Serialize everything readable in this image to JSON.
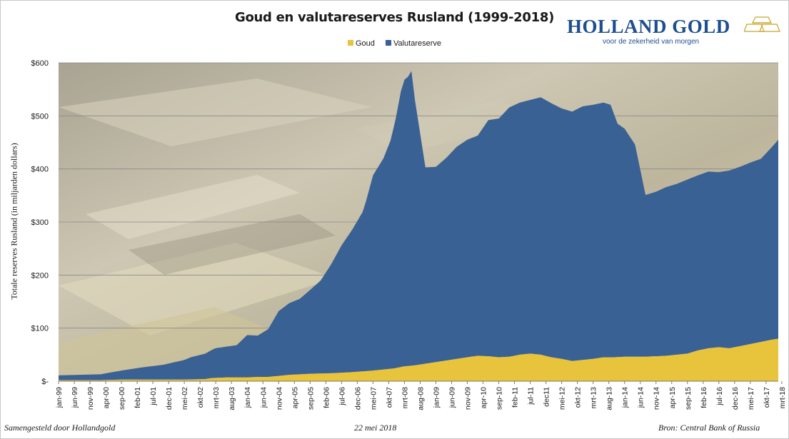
{
  "header": {
    "title": "Goud en valutareserves Rusland (1999-2018)"
  },
  "logo": {
    "name": "HOLLAND GOLD",
    "slogan": "voor de zekerheid van morgen"
  },
  "legend": {
    "items": [
      {
        "label": "Goud",
        "color": "#e8c33c"
      },
      {
        "label": "Valutareserve",
        "color": "#3a6193"
      }
    ]
  },
  "footer": {
    "left": "Samengesteld door Hollandgold",
    "center": "22 mei 2018",
    "right": "Bron: Central Bank of Russia"
  },
  "chart_data": {
    "type": "area",
    "stacked": true,
    "title": "Goud en valutareserves Rusland (1999-2018)",
    "ylabel": "Totale reserves Rusland (in miljarden dollars)",
    "xlabel": "",
    "ylim": [
      0,
      600
    ],
    "yticks": [
      0,
      100,
      200,
      300,
      400,
      500,
      600
    ],
    "ytick_labels": [
      "$-",
      "$100",
      "$200",
      "$300",
      "$400",
      "$500",
      "$600"
    ],
    "grid": true,
    "legend_position": "top-center",
    "background": "photograph of gold bars",
    "x_tick_labels": [
      "jan-99",
      "jun-99",
      "nov-99",
      "apr-00",
      "sep-00",
      "feb-01",
      "jul-01",
      "dec-01",
      "mei-02",
      "okt-02",
      "mrt-03",
      "aug-03",
      "jan-04",
      "jun-04",
      "nov-04",
      "apr-05",
      "sep-05",
      "feb-06",
      "jul-06",
      "dec-06",
      "mei-07",
      "okt-07",
      "mrt-08",
      "aug-08",
      "jan-09",
      "jun-09",
      "nov-09",
      "apr-10",
      "sep-10",
      "feb-11",
      "jul-11",
      "dec11",
      "mei-12",
      "okt-12",
      "mrt-13",
      "aug-13",
      "jan-14",
      "jun-14",
      "nov-14",
      "apr-15",
      "sep-15",
      "feb-16",
      "jul-16",
      "dec-16",
      "mei-17",
      "okt-17",
      "mrt-18"
    ],
    "series": [
      {
        "name": "Goud",
        "color": "#e8c33c",
        "x": [
          0,
          12,
          24,
          36,
          48,
          60,
          72,
          84,
          86,
          88,
          96,
          102,
          108,
          114,
          120,
          132,
          144,
          156,
          168,
          180,
          186,
          192,
          198,
          204,
          210,
          216,
          222,
          228,
          234,
          240,
          246,
          252,
          258,
          264,
          270,
          276,
          282,
          288,
          294,
          300,
          306,
          312,
          318,
          324,
          330,
          336,
          342,
          348,
          354,
          360,
          366,
          372,
          378,
          384,
          390,
          396,
          402,
          408,
          412
        ],
        "values": [
          2,
          2,
          2,
          3,
          3,
          3,
          3,
          4,
          5,
          6,
          7,
          7,
          7,
          8,
          8,
          12,
          14,
          15,
          17,
          20,
          22,
          24,
          28,
          30,
          33,
          36,
          39,
          42,
          45,
          48,
          47,
          45,
          46,
          50,
          52,
          50,
          45,
          42,
          38,
          40,
          42,
          45,
          45,
          46,
          46,
          46,
          47,
          48,
          50,
          52,
          58,
          62,
          64,
          62,
          66,
          70,
          74,
          78,
          80
        ]
      },
      {
        "name": "Valutareserve",
        "color": "#3a6193",
        "x": [
          0,
          12,
          24,
          36,
          48,
          60,
          72,
          76,
          84,
          90,
          96,
          102,
          108,
          114,
          120,
          126,
          132,
          138,
          144,
          150,
          156,
          162,
          168,
          174,
          176,
          180,
          186,
          190,
          193,
          196,
          198,
          200,
          202,
          204,
          210,
          216,
          222,
          228,
          234,
          240,
          246,
          252,
          258,
          264,
          270,
          276,
          282,
          288,
          294,
          300,
          306,
          312,
          316,
          320,
          324,
          330,
          336,
          342,
          348,
          354,
          360,
          366,
          372,
          378,
          384,
          390,
          396,
          402,
          408,
          412
        ],
        "values": [
          9,
          10,
          11,
          17,
          23,
          28,
          37,
          42,
          48,
          56,
          58,
          61,
          80,
          78,
          90,
          122,
          135,
          142,
          158,
          175,
          205,
          240,
          268,
          300,
          320,
          368,
          398,
          430,
          470,
          520,
          540,
          545,
          555,
          500,
          370,
          368,
          382,
          400,
          410,
          415,
          445,
          450,
          470,
          475,
          478,
          485,
          479,
          472,
          470,
          478,
          479,
          480,
          476,
          440,
          430,
          400,
          305,
          310,
          318,
          322,
          328,
          330,
          333,
          330,
          335,
          338,
          342,
          345,
          362,
          375
        ]
      }
    ]
  }
}
